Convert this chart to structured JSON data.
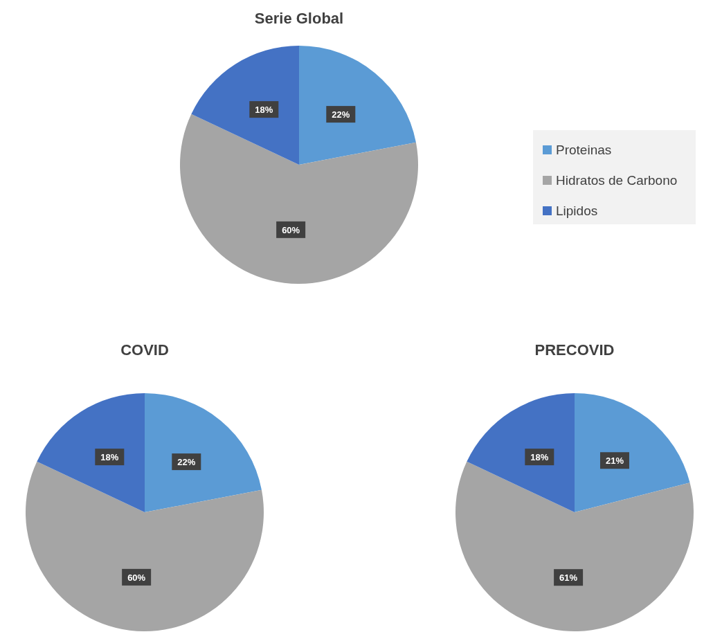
{
  "chart_data": [
    {
      "type": "pie",
      "title": "Serie Global",
      "categories": [
        "Proteinas",
        "Hidratos de Carbono",
        "Lipidos"
      ],
      "values": [
        22,
        60,
        18
      ],
      "colors": [
        "#5b9bd5",
        "#a5a5a5",
        "#4472c4"
      ],
      "value_labels": [
        "22%",
        "60%",
        "18%"
      ],
      "legend": "right"
    },
    {
      "type": "pie",
      "title": "COVID",
      "values": [
        22,
        60,
        18
      ],
      "colors": [
        "#5b9bd5",
        "#a5a5a5",
        "#4472c4"
      ],
      "value_labels": [
        "22%",
        "60%",
        "18%"
      ]
    },
    {
      "type": "pie",
      "title": "PRECOVID",
      "values": [
        21,
        61,
        18
      ],
      "colors": [
        "#5b9bd5",
        "#a5a5a5",
        "#4472c4"
      ],
      "value_labels": [
        "21%",
        "61%",
        "18%"
      ]
    }
  ]
}
